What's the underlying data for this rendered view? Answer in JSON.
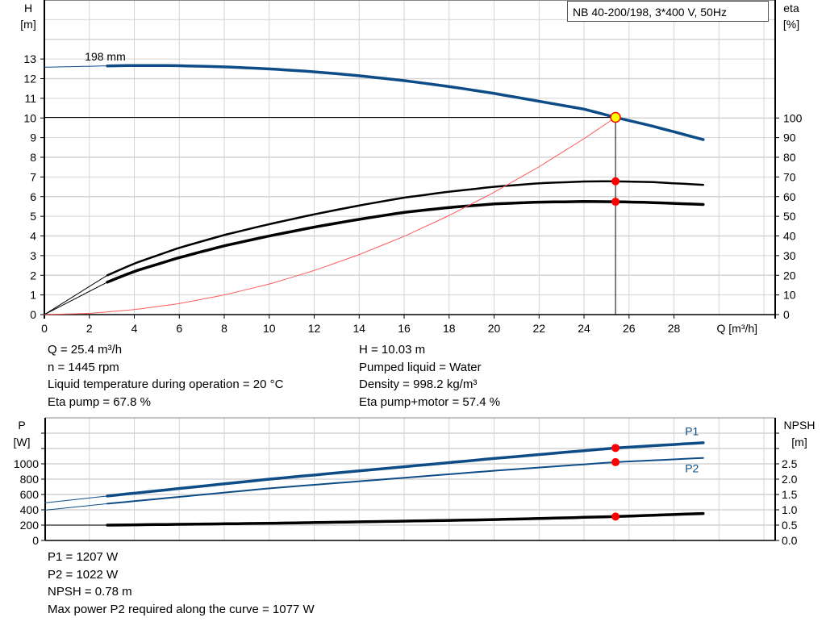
{
  "title": "NB 40-200/198, 3*400 V, 50Hz",
  "colors": {
    "head": "#0d4c86",
    "eta": "#000000",
    "system": "#ff5a5a",
    "power": "#0d4c86",
    "npsh": "#000000",
    "point": "#ff0000",
    "duty_point": "#ffff00",
    "grid": "#d4d4d4"
  },
  "chart_data": [
    {
      "type": "line",
      "xlabel": "Q [m³/h]",
      "ylabel_left": [
        "H",
        "[m]"
      ],
      "ylabel_right": [
        "eta",
        "[%]"
      ],
      "xlim": [
        0,
        32.5
      ],
      "ylim_left": [
        0,
        16
      ],
      "ylim_right_eta": [
        0,
        160
      ],
      "xticks": [
        "0",
        "2",
        "4",
        "6",
        "8",
        "10",
        "12",
        "14",
        "16",
        "18",
        "20",
        "22",
        "24",
        "26",
        "28"
      ],
      "yticks_left": [
        "0",
        "1",
        "2",
        "3",
        "4",
        "5",
        "6",
        "7",
        "8",
        "9",
        "10",
        "11",
        "12",
        "13"
      ],
      "yticks_right": [
        "0",
        "10",
        "20",
        "30",
        "40",
        "50",
        "60",
        "70",
        "80",
        "90",
        "100"
      ],
      "grid": true,
      "curve_label": "198 mm",
      "series": [
        {
          "key": "head",
          "axis": "left",
          "x": [
            0,
            2.8,
            4,
            6,
            8,
            10,
            12,
            14,
            16,
            18,
            20,
            22,
            24,
            25.4,
            27,
            29.3
          ],
          "y": [
            12.58,
            12.65,
            12.67,
            12.66,
            12.6,
            12.5,
            12.35,
            12.15,
            11.9,
            11.6,
            11.25,
            10.85,
            10.45,
            10.03,
            9.6,
            8.9
          ],
          "solid_from": 2.8
        },
        {
          "key": "eta_pump",
          "axis": "right",
          "x": [
            0,
            2.8,
            4,
            6,
            8,
            10,
            12,
            14,
            16,
            18,
            20,
            22,
            24,
            25.4,
            27,
            29.3
          ],
          "y": [
            0,
            20,
            26,
            34,
            40.5,
            46,
            51,
            55.5,
            59.5,
            62.5,
            65,
            66.8,
            67.7,
            67.8,
            67.4,
            66
          ],
          "solid_from": 2.8
        },
        {
          "key": "eta_pump_motor",
          "axis": "right",
          "x": [
            0,
            2.8,
            4,
            6,
            8,
            10,
            12,
            14,
            16,
            18,
            20,
            22,
            24,
            25.4,
            27,
            29.3
          ],
          "y": [
            0,
            16.5,
            22,
            29,
            35,
            40,
            44.5,
            48.5,
            52,
            54.5,
            56.3,
            57.2,
            57.5,
            57.4,
            57,
            56
          ],
          "solid_from": 2.8
        },
        {
          "key": "system",
          "axis": "left",
          "x": [
            0,
            2,
            4,
            6,
            8,
            10,
            12,
            14,
            16,
            18,
            20,
            22,
            24,
            25.4
          ],
          "y": [
            0,
            0.06,
            0.25,
            0.56,
            1.0,
            1.55,
            2.24,
            3.05,
            3.98,
            5.04,
            6.22,
            7.52,
            8.95,
            10.03
          ]
        }
      ],
      "duty_point": {
        "q": 25.4,
        "h": 10.03,
        "eta_pump": 67.8,
        "eta_pump_motor": 57.4
      }
    },
    {
      "type": "line",
      "ylabel_left": [
        "P",
        "[W]"
      ],
      "ylabel_right": [
        "NPSH",
        "[m]"
      ],
      "xlim": [
        0,
        32.5
      ],
      "ylim_left": [
        0,
        1600
      ],
      "ylim_right": [
        0,
        4
      ],
      "yticks_left": [
        "0",
        "200",
        "400",
        "600",
        "800",
        "1000"
      ],
      "yticks_right": [
        "0.0",
        "0.5",
        "1.0",
        "1.5",
        "2.0",
        "2.5"
      ],
      "grid": true,
      "series": [
        {
          "name": "P1",
          "key": "p1",
          "axis": "left",
          "x": [
            0,
            2.8,
            10,
            20,
            25.4,
            29.3
          ],
          "y": [
            490,
            580,
            800,
            1070,
            1207,
            1275
          ],
          "solid_from": 2.8
        },
        {
          "name": "P2",
          "key": "p2",
          "axis": "left",
          "x": [
            0,
            2.8,
            10,
            20,
            25.4,
            29.3
          ],
          "y": [
            395,
            480,
            680,
            910,
            1022,
            1077
          ],
          "solid_from": 2.8
        },
        {
          "key": "npsh",
          "axis": "right",
          "x": [
            0,
            2.8,
            10,
            20,
            25.4,
            29.3
          ],
          "y": [
            0.5,
            0.5,
            0.56,
            0.68,
            0.78,
            0.88
          ],
          "solid_from": 2.8
        }
      ],
      "duty_point": {
        "q": 25.4,
        "p1": 1207,
        "p2": 1022,
        "npsh": 0.78
      }
    }
  ],
  "info_top_left": [
    "Q = 25.4 m³/h",
    "n = 1445 rpm",
    "Liquid temperature during operation = 20 °C",
    "Eta pump = 67.8 %"
  ],
  "info_top_right": [
    "H = 10.03 m",
    "Pumped liquid = Water",
    "Density = 998.2 kg/m³",
    "Eta pump+motor = 57.4 %"
  ],
  "info_bottom": [
    "P1 = 1207 W",
    "P2 = 1022 W",
    "NPSH = 0.78 m",
    "Max power P2 required along the curve = 1077 W"
  ]
}
